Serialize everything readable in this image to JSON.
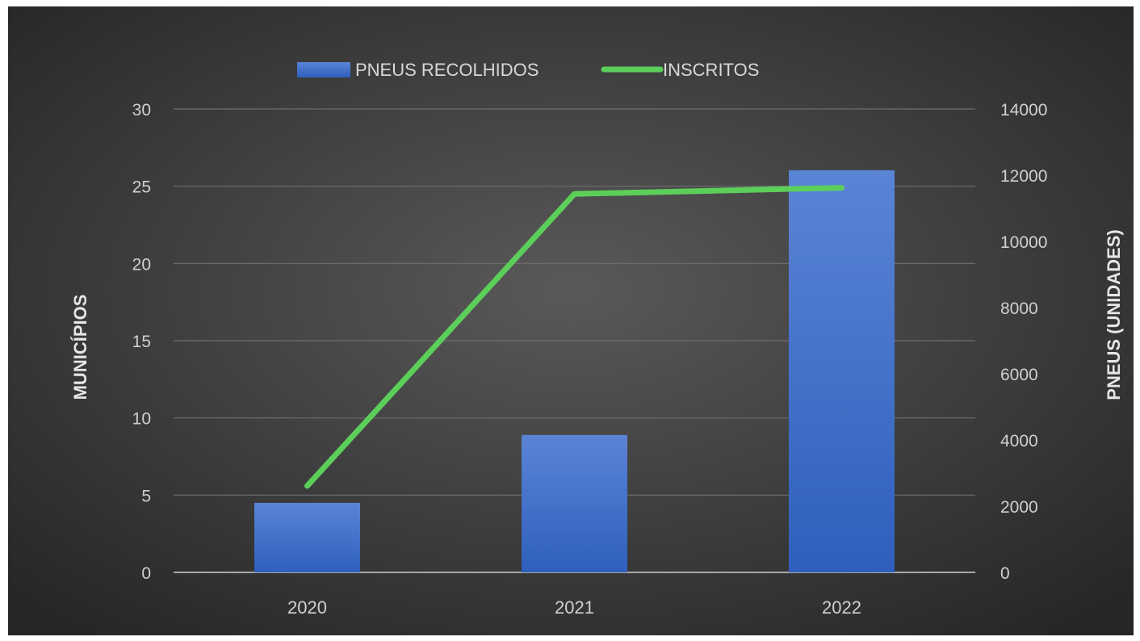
{
  "chart_data": {
    "type": "bar",
    "title": "",
    "categories": [
      "2020",
      "2021",
      "2022"
    ],
    "series": [
      {
        "name": "PNEUS RECOLHIDOS",
        "type": "bar",
        "axis": "right",
        "values": [
          2100,
          4150,
          12150
        ]
      },
      {
        "name": "INSCRITOS",
        "type": "line",
        "axis": "left",
        "values": [
          5.6,
          24.5,
          24.9
        ]
      }
    ],
    "y_left": {
      "label": "MUNICÍPIOS",
      "lim": [
        0,
        30
      ],
      "ticks": [
        "0",
        "5",
        "10",
        "15",
        "20",
        "25",
        "30"
      ]
    },
    "y_right": {
      "label": "PNEUS (UNIDADES)",
      "lim": [
        0,
        14000
      ],
      "ticks": [
        "0",
        "2000",
        "4000",
        "6000",
        "8000",
        "10000",
        "12000",
        "14000"
      ]
    },
    "grid": true,
    "legend": "top-center"
  },
  "colors": {
    "bar_top": "#5a84d6",
    "bar_bottom": "#2f5fbd",
    "line": "#5ccf5a",
    "background_center": "#595959",
    "background_edge": "#262626",
    "grid": "#6e6e6e"
  }
}
